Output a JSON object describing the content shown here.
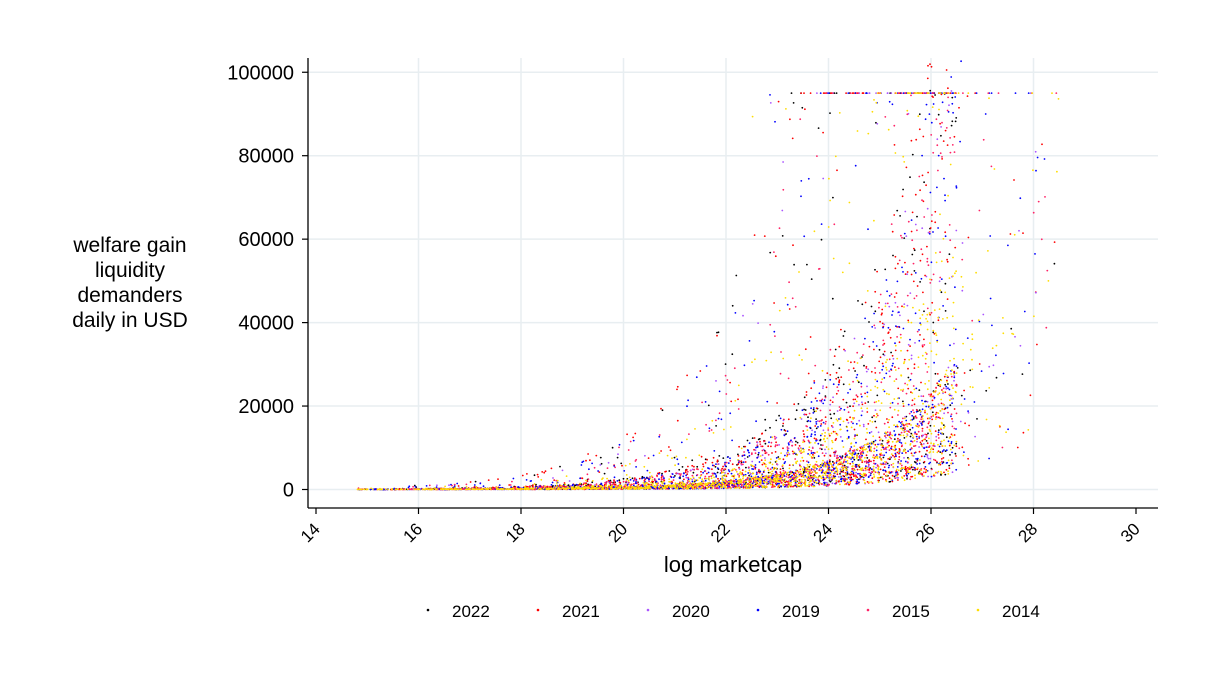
{
  "chart_data": {
    "type": "scatter",
    "title": "",
    "xlabel": "log marketcap",
    "ylabel": "welfare gain liquidity demanders daily in USD",
    "ylabel_lines": [
      "welfare gain",
      "liquidity",
      "demanders",
      "daily in USD"
    ],
    "xlim": [
      14,
      30
    ],
    "ylim": [
      0,
      100000
    ],
    "xticks": [
      14,
      16,
      18,
      20,
      22,
      24,
      26,
      28,
      30
    ],
    "yticks": [
      0,
      20000,
      40000,
      60000,
      80000,
      100000
    ],
    "grid": true,
    "legend_position": "bottom",
    "series": [
      {
        "name": "2022",
        "color": "#000000",
        "seed": 11
      },
      {
        "name": "2021",
        "color": "#ff0000",
        "seed": 23
      },
      {
        "name": "2020",
        "color": "#aa55ff",
        "seed": 37
      },
      {
        "name": "2019",
        "color": "#0000ff",
        "seed": 51
      },
      {
        "name": "2015",
        "color": "#ff2266",
        "seed": 67
      },
      {
        "name": "2014",
        "color": "#ffdd00",
        "seed": 83
      }
    ]
  }
}
